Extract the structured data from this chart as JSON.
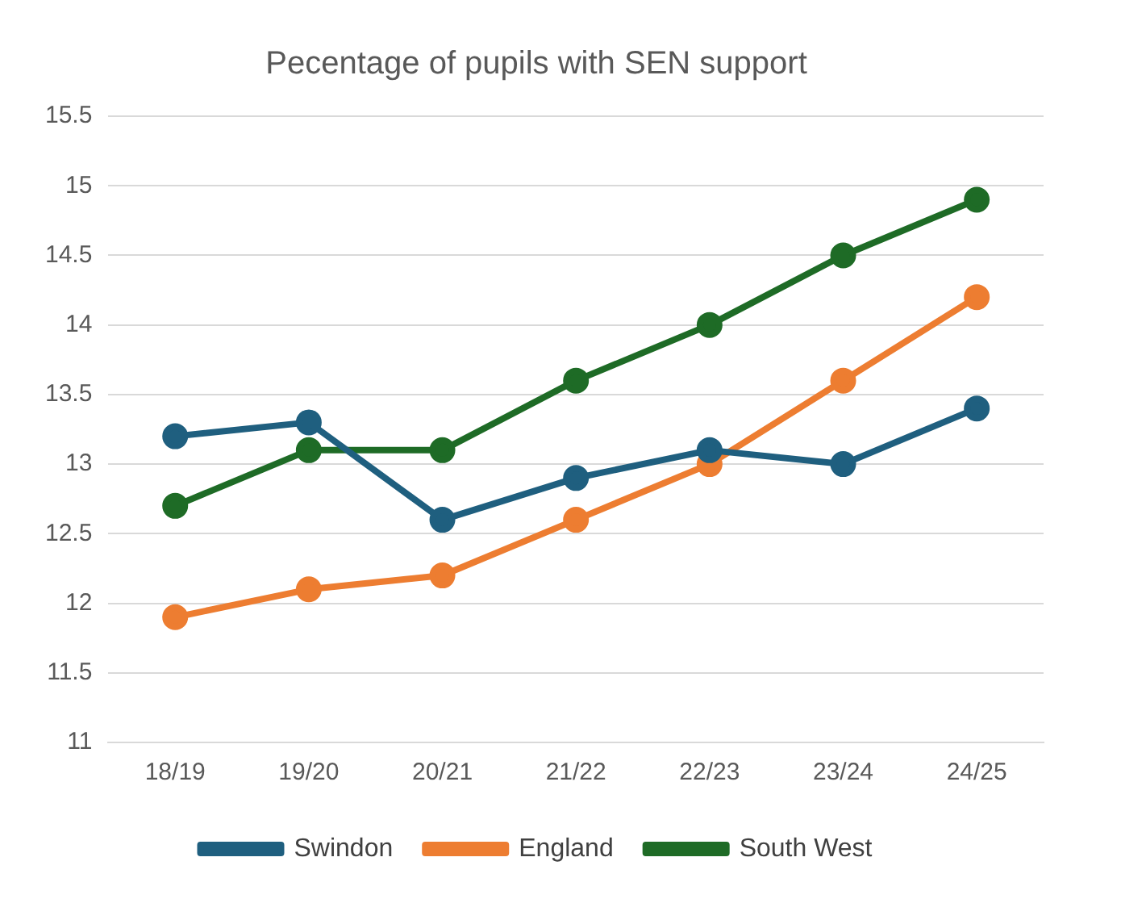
{
  "chart_data": {
    "type": "line",
    "title": "Pecentage of pupils with SEN support",
    "categories": [
      "18/19",
      "19/20",
      "20/21",
      "21/22",
      "22/23",
      "23/24",
      "24/25"
    ],
    "series": [
      {
        "name": "Swindon",
        "color": "#1f5f7f",
        "values": [
          13.2,
          13.3,
          12.6,
          12.9,
          13.1,
          13.0,
          13.4
        ]
      },
      {
        "name": "England",
        "color": "#ed7d31",
        "values": [
          11.9,
          12.1,
          12.2,
          12.6,
          13.0,
          13.6,
          14.2
        ]
      },
      {
        "name": "South West",
        "color": "#1e6b26",
        "values": [
          12.7,
          13.1,
          13.1,
          13.6,
          14.0,
          14.5,
          14.9
        ]
      }
    ],
    "ylim": [
      11,
      15.5
    ],
    "yticks": [
      11,
      11.5,
      12,
      12.5,
      13,
      13.5,
      14,
      14.5,
      15,
      15.5
    ],
    "grid": "y",
    "legend": "bottom",
    "marker": "circle",
    "line_style": "solid"
  }
}
